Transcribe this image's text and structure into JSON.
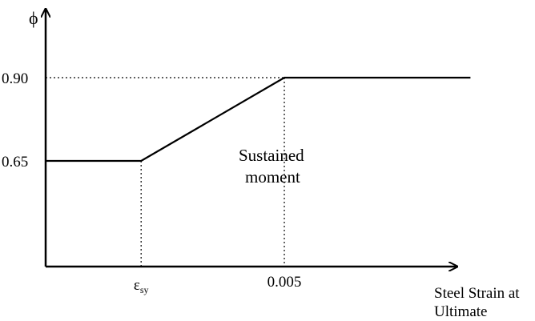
{
  "chart_data": {
    "type": "line",
    "title": "",
    "ylabel": "ϕ",
    "xlabel": [
      "Steel Strain at",
      "Ultimate"
    ],
    "y_ticks": [
      {
        "value": 0.65,
        "label": "0.65"
      },
      {
        "value": 0.9,
        "label": "0.90"
      }
    ],
    "x_ticks": [
      {
        "value": 0.002,
        "label": "ε",
        "subscript": "sy"
      },
      {
        "value": 0.005,
        "label": "0.005"
      }
    ],
    "series": [
      {
        "points": [
          {
            "x": 0.0,
            "y": 0.65
          },
          {
            "x": 0.002,
            "y": 0.65
          },
          {
            "x": 0.005,
            "y": 0.9
          },
          {
            "x": 0.0089,
            "y": 0.9
          }
        ]
      }
    ],
    "annotation": [
      "Sustained",
      "moment"
    ],
    "xlim": [
      0,
      0.01
    ],
    "ylim": [
      0.4,
      1.1
    ],
    "grid": false,
    "guides": "dotted"
  }
}
